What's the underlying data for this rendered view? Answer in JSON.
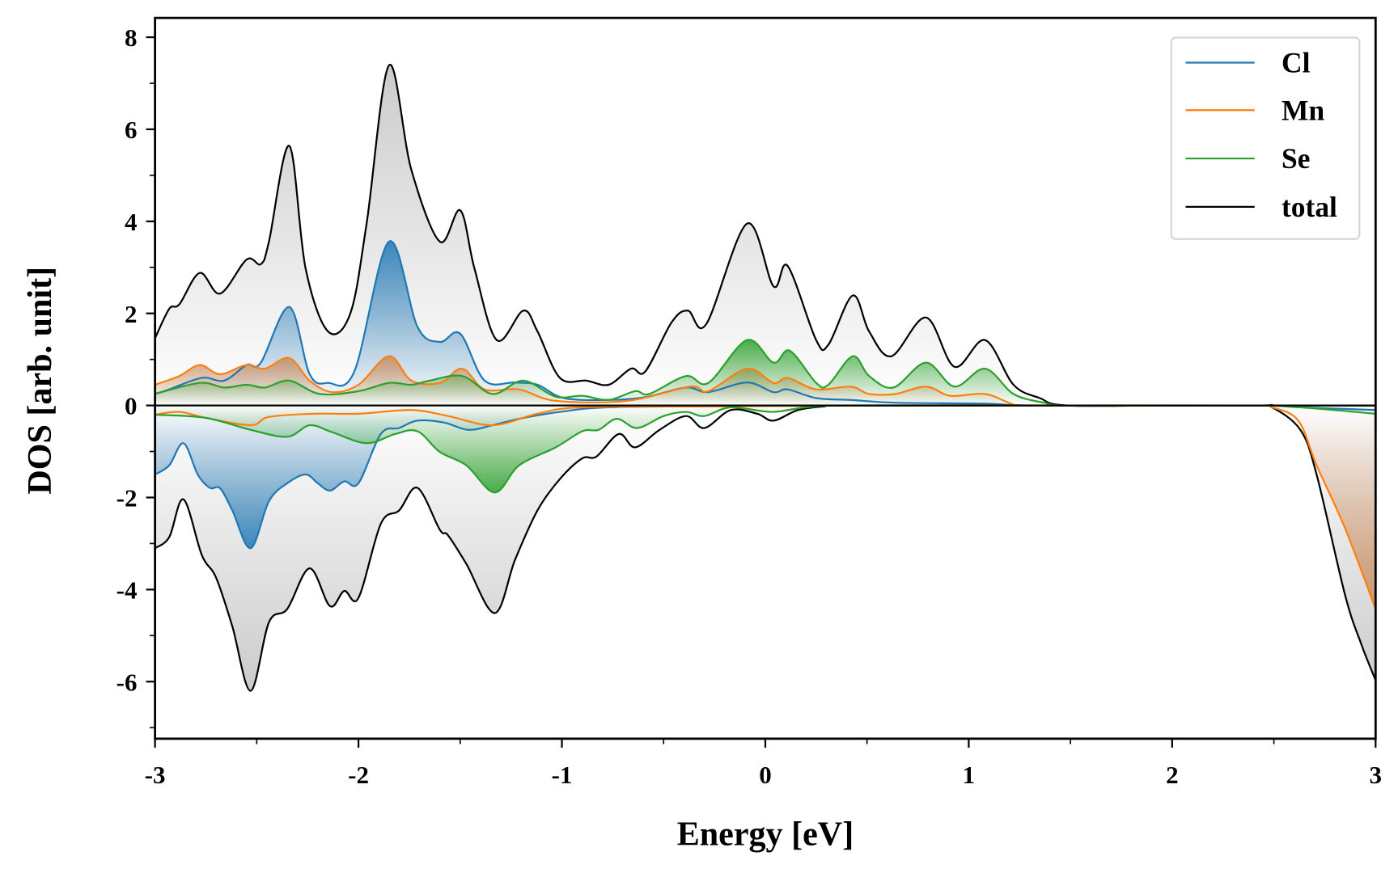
{
  "chart_data": {
    "type": "area",
    "title": "",
    "xlabel": "Energy [eV]",
    "ylabel": "DOS [arb. unit]",
    "xlim": [
      -3,
      3
    ],
    "ylim": [
      -7.24,
      8.42
    ],
    "xticks": [
      "-3",
      "-2",
      "-1",
      "0",
      "1",
      "2",
      "3"
    ],
    "xtick_values": [
      -3,
      -2,
      -1,
      0,
      1,
      2,
      3
    ],
    "yticks": [
      "-6",
      "-4",
      "-2",
      "0",
      "2",
      "4",
      "6",
      "8"
    ],
    "ytick_values": [
      -6,
      -4,
      -2,
      0,
      2,
      4,
      6,
      8
    ],
    "grid": false,
    "legend_position": "top-right",
    "series": [
      {
        "name": "total",
        "color": "#000000",
        "fill": "#8c8c8c",
        "up": [
          [
            -3,
            1.46
          ],
          [
            -2.93,
            2.1
          ],
          [
            -2.88,
            2.2
          ],
          [
            -2.78,
            2.88
          ],
          [
            -2.68,
            2.43
          ],
          [
            -2.55,
            3.17
          ],
          [
            -2.48,
            3.07
          ],
          [
            -2.44,
            3.56
          ],
          [
            -2.34,
            5.64
          ],
          [
            -2.26,
            2.98
          ],
          [
            -2.15,
            1.61
          ],
          [
            -2.04,
            2.0
          ],
          [
            -1.96,
            3.95
          ],
          [
            -1.85,
            7.39
          ],
          [
            -1.74,
            5.12
          ],
          [
            -1.6,
            3.56
          ],
          [
            -1.5,
            4.24
          ],
          [
            -1.43,
            2.98
          ],
          [
            -1.32,
            1.42
          ],
          [
            -1.19,
            2.06
          ],
          [
            -1.12,
            1.61
          ],
          [
            -1.01,
            0.6
          ],
          [
            -0.88,
            0.54
          ],
          [
            -0.77,
            0.45
          ],
          [
            -0.66,
            0.8
          ],
          [
            -0.59,
            0.74
          ],
          [
            -0.46,
            1.81
          ],
          [
            -0.38,
            2.06
          ],
          [
            -0.29,
            1.77
          ],
          [
            -0.09,
            3.95
          ],
          [
            0.04,
            2.59
          ],
          [
            0.11,
            3.03
          ],
          [
            0.25,
            1.42
          ],
          [
            0.31,
            1.32
          ],
          [
            0.43,
            2.39
          ],
          [
            0.51,
            1.61
          ],
          [
            0.62,
            1.07
          ],
          [
            0.79,
            1.91
          ],
          [
            0.93,
            0.84
          ],
          [
            1.08,
            1.42
          ],
          [
            1.22,
            0.45
          ],
          [
            1.35,
            0.16
          ],
          [
            1.48,
            0
          ],
          [
            2.0,
            0
          ],
          [
            3,
            0
          ]
        ],
        "down": [
          [
            -3,
            -3.1
          ],
          [
            -2.93,
            -2.86
          ],
          [
            -2.86,
            -2.04
          ],
          [
            -2.77,
            -3.25
          ],
          [
            -2.7,
            -3.74
          ],
          [
            -2.62,
            -4.8
          ],
          [
            -2.53,
            -6.2
          ],
          [
            -2.44,
            -4.71
          ],
          [
            -2.35,
            -4.42
          ],
          [
            -2.24,
            -3.54
          ],
          [
            -2.14,
            -4.36
          ],
          [
            -2.07,
            -4.03
          ],
          [
            -2.0,
            -4.18
          ],
          [
            -1.89,
            -2.57
          ],
          [
            -1.8,
            -2.28
          ],
          [
            -1.71,
            -1.79
          ],
          [
            -1.6,
            -2.7
          ],
          [
            -1.56,
            -2.82
          ],
          [
            -1.47,
            -3.44
          ],
          [
            -1.33,
            -4.51
          ],
          [
            -1.23,
            -3.35
          ],
          [
            -1.12,
            -2.28
          ],
          [
            -1.01,
            -1.6
          ],
          [
            -0.9,
            -1.15
          ],
          [
            -0.83,
            -1.11
          ],
          [
            -0.72,
            -0.62
          ],
          [
            -0.64,
            -0.91
          ],
          [
            -0.52,
            -0.53
          ],
          [
            -0.39,
            -0.23
          ],
          [
            -0.3,
            -0.49
          ],
          [
            -0.17,
            -0.1
          ],
          [
            -0.04,
            -0.18
          ],
          [
            0.04,
            -0.33
          ],
          [
            0.16,
            -0.1
          ],
          [
            0.29,
            -0.02
          ],
          [
            0.38,
            0
          ],
          [
            1.5,
            0
          ],
          [
            2.4,
            0
          ],
          [
            2.49,
            -0.04
          ],
          [
            2.63,
            -0.53
          ],
          [
            2.71,
            -1.5
          ],
          [
            2.85,
            -4.12
          ],
          [
            2.93,
            -5.19
          ],
          [
            3.0,
            -5.97
          ]
        ]
      },
      {
        "name": "Cl",
        "color": "#1f77b4",
        "fill": "#1f77b4",
        "up": [
          [
            -3,
            0.25
          ],
          [
            -2.93,
            0.35
          ],
          [
            -2.77,
            0.6
          ],
          [
            -2.66,
            0.54
          ],
          [
            -2.55,
            0.88
          ],
          [
            -2.48,
            0.93
          ],
          [
            -2.34,
            2.14
          ],
          [
            -2.24,
            0.68
          ],
          [
            -2.15,
            0.49
          ],
          [
            -2.02,
            0.74
          ],
          [
            -1.85,
            3.56
          ],
          [
            -1.71,
            1.71
          ],
          [
            -1.6,
            1.38
          ],
          [
            -1.5,
            1.56
          ],
          [
            -1.38,
            0.54
          ],
          [
            -1.23,
            0.5
          ],
          [
            -1.12,
            0.45
          ],
          [
            -0.99,
            0.16
          ],
          [
            -0.77,
            0.12
          ],
          [
            -0.59,
            0.18
          ],
          [
            -0.39,
            0.39
          ],
          [
            -0.28,
            0.29
          ],
          [
            -0.09,
            0.5
          ],
          [
            0.04,
            0.29
          ],
          [
            0.11,
            0.35
          ],
          [
            0.25,
            0.16
          ],
          [
            0.42,
            0.12
          ],
          [
            0.64,
            0.06
          ],
          [
            1.08,
            0.04
          ],
          [
            1.3,
            0
          ],
          [
            2.0,
            0
          ],
          [
            3,
            0
          ]
        ],
        "down": [
          [
            -3,
            -1.5
          ],
          [
            -2.93,
            -1.3
          ],
          [
            -2.86,
            -0.82
          ],
          [
            -2.79,
            -1.5
          ],
          [
            -2.73,
            -1.79
          ],
          [
            -2.68,
            -1.8
          ],
          [
            -2.62,
            -2.28
          ],
          [
            -2.53,
            -3.1
          ],
          [
            -2.44,
            -2.08
          ],
          [
            -2.35,
            -1.69
          ],
          [
            -2.26,
            -1.5
          ],
          [
            -2.2,
            -1.69
          ],
          [
            -2.14,
            -1.85
          ],
          [
            -2.07,
            -1.65
          ],
          [
            -2.0,
            -1.69
          ],
          [
            -1.89,
            -0.62
          ],
          [
            -1.8,
            -0.49
          ],
          [
            -1.71,
            -0.33
          ],
          [
            -1.58,
            -0.37
          ],
          [
            -1.46,
            -0.53
          ],
          [
            -1.34,
            -0.43
          ],
          [
            -1.21,
            -0.29
          ],
          [
            -1.01,
            -0.14
          ],
          [
            -0.77,
            -0.04
          ],
          [
            -0.24,
            -0.02
          ],
          [
            0.2,
            0
          ],
          [
            1.5,
            0
          ],
          [
            2.4,
            0
          ],
          [
            2.63,
            -0.04
          ],
          [
            3,
            -0.1
          ]
        ]
      },
      {
        "name": "Mn",
        "color": "#ff7f0e",
        "fill": "#c98a5a",
        "up": [
          [
            -3,
            0.45
          ],
          [
            -2.88,
            0.64
          ],
          [
            -2.78,
            0.88
          ],
          [
            -2.68,
            0.68
          ],
          [
            -2.55,
            0.88
          ],
          [
            -2.46,
            0.8
          ],
          [
            -2.34,
            1.03
          ],
          [
            -2.24,
            0.54
          ],
          [
            -2.13,
            0.29
          ],
          [
            -2.0,
            0.45
          ],
          [
            -1.85,
            1.07
          ],
          [
            -1.74,
            0.54
          ],
          [
            -1.6,
            0.49
          ],
          [
            -1.49,
            0.8
          ],
          [
            -1.38,
            0.35
          ],
          [
            -1.21,
            0.35
          ],
          [
            -1.03,
            0.1
          ],
          [
            -0.68,
            0.1
          ],
          [
            -0.37,
            0.41
          ],
          [
            -0.28,
            0.31
          ],
          [
            -0.09,
            0.8
          ],
          [
            0.04,
            0.49
          ],
          [
            0.11,
            0.6
          ],
          [
            0.25,
            0.35
          ],
          [
            0.42,
            0.41
          ],
          [
            0.51,
            0.25
          ],
          [
            0.64,
            0.25
          ],
          [
            0.79,
            0.41
          ],
          [
            0.91,
            0.21
          ],
          [
            1.08,
            0.25
          ],
          [
            1.22,
            0.02
          ],
          [
            1.3,
            0
          ],
          [
            2.0,
            0
          ],
          [
            3,
            0
          ]
        ],
        "down": [
          [
            -3,
            -0.2
          ],
          [
            -2.88,
            -0.14
          ],
          [
            -2.75,
            -0.27
          ],
          [
            -2.53,
            -0.43
          ],
          [
            -2.44,
            -0.25
          ],
          [
            -2.22,
            -0.18
          ],
          [
            -2.0,
            -0.18
          ],
          [
            -1.74,
            -0.1
          ],
          [
            -1.56,
            -0.23
          ],
          [
            -1.34,
            -0.43
          ],
          [
            -1.12,
            -0.18
          ],
          [
            -0.9,
            -0.04
          ],
          [
            -0.24,
            -0.02
          ],
          [
            0.5,
            0
          ],
          [
            1.5,
            0
          ],
          [
            2.4,
            0
          ],
          [
            2.49,
            -0.04
          ],
          [
            2.62,
            -0.33
          ],
          [
            2.71,
            -1.3
          ],
          [
            2.85,
            -2.67
          ],
          [
            3,
            -4.42
          ]
        ]
      },
      {
        "name": "Se",
        "color": "#2ca02c",
        "fill": "#2ca02c",
        "up": [
          [
            -3,
            0.25
          ],
          [
            -2.78,
            0.49
          ],
          [
            -2.66,
            0.39
          ],
          [
            -2.55,
            0.45
          ],
          [
            -2.46,
            0.39
          ],
          [
            -2.34,
            0.54
          ],
          [
            -2.19,
            0.25
          ],
          [
            -2.0,
            0.31
          ],
          [
            -1.85,
            0.49
          ],
          [
            -1.74,
            0.45
          ],
          [
            -1.65,
            0.54
          ],
          [
            -1.49,
            0.64
          ],
          [
            -1.34,
            0.25
          ],
          [
            -1.19,
            0.54
          ],
          [
            -1.03,
            0.19
          ],
          [
            -0.9,
            0.21
          ],
          [
            -0.77,
            0.12
          ],
          [
            -0.64,
            0.31
          ],
          [
            -0.57,
            0.25
          ],
          [
            -0.39,
            0.64
          ],
          [
            -0.28,
            0.49
          ],
          [
            -0.09,
            1.42
          ],
          [
            0.04,
            0.93
          ],
          [
            0.12,
            1.19
          ],
          [
            0.25,
            0.49
          ],
          [
            0.31,
            0.45
          ],
          [
            0.43,
            1.07
          ],
          [
            0.51,
            0.64
          ],
          [
            0.63,
            0.39
          ],
          [
            0.79,
            0.93
          ],
          [
            0.93,
            0.41
          ],
          [
            1.08,
            0.8
          ],
          [
            1.22,
            0.25
          ],
          [
            1.37,
            0.06
          ],
          [
            1.48,
            0
          ],
          [
            2.0,
            0
          ],
          [
            3,
            0
          ]
        ],
        "down": [
          [
            -3,
            -0.2
          ],
          [
            -2.75,
            -0.27
          ],
          [
            -2.53,
            -0.53
          ],
          [
            -2.35,
            -0.68
          ],
          [
            -2.24,
            -0.43
          ],
          [
            -2.13,
            -0.58
          ],
          [
            -1.96,
            -0.82
          ],
          [
            -1.82,
            -0.62
          ],
          [
            -1.71,
            -0.56
          ],
          [
            -1.6,
            -1.01
          ],
          [
            -1.47,
            -1.3
          ],
          [
            -1.33,
            -1.89
          ],
          [
            -1.21,
            -1.3
          ],
          [
            -1.03,
            -0.91
          ],
          [
            -0.9,
            -0.56
          ],
          [
            -0.82,
            -0.53
          ],
          [
            -0.73,
            -0.29
          ],
          [
            -0.63,
            -0.49
          ],
          [
            -0.5,
            -0.23
          ],
          [
            -0.39,
            -0.14
          ],
          [
            -0.3,
            -0.23
          ],
          [
            -0.17,
            -0.04
          ],
          [
            0.03,
            -0.14
          ],
          [
            0.2,
            -0.04
          ],
          [
            0.42,
            0
          ],
          [
            1.5,
            0
          ],
          [
            2.4,
            0
          ],
          [
            2.63,
            -0.04
          ],
          [
            3,
            -0.18
          ]
        ]
      }
    ],
    "legend": [
      {
        "label": "Cl",
        "color": "#1f77b4"
      },
      {
        "label": "Mn",
        "color": "#ff7f0e"
      },
      {
        "label": "Se",
        "color": "#2ca02c"
      },
      {
        "label": "total",
        "color": "#000000"
      }
    ]
  }
}
